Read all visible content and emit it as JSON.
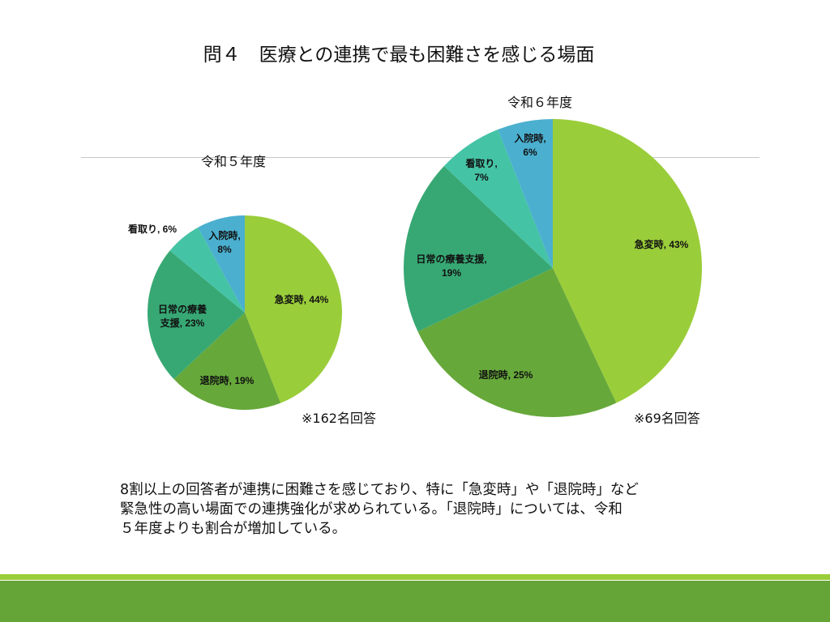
{
  "title": "問４　医療との連携で最も困難さを感じる場面",
  "colors": [
    "#9acd3a",
    "#66a83a",
    "#37a874",
    "#45c3a5",
    "#4bafcf"
  ],
  "chart_data": [
    {
      "type": "pie",
      "title": "令和５年度",
      "note": "※162名回答",
      "categories": [
        "急変時",
        "退院時",
        "日常の療養支援",
        "看取り",
        "入院時"
      ],
      "values": [
        44,
        19,
        23,
        6,
        8
      ],
      "labels": [
        "急変時, 44%",
        "退院時, 19%",
        "日常の療養",
        "支援, 23%",
        "看取り, 6%",
        "入院時,",
        "8%"
      ]
    },
    {
      "type": "pie",
      "title": "令和６年度",
      "note": "※69名回答",
      "categories": [
        "急変時",
        "退院時",
        "日常の療養支援",
        "看取り",
        "入院時"
      ],
      "values": [
        43,
        25,
        19,
        7,
        6
      ],
      "labels": [
        "急変時, 43%",
        "退院時, 25%",
        "日常の療養支援,",
        "19%",
        "看取り,",
        "7%",
        "入院時,",
        "6%"
      ]
    }
  ],
  "summary": [
    "8割以上の回答者が連携に困難さを感じており、特に「急変時」や「退院時」など",
    "緊急性の高い場面での連携強化が求められている。「退院時」については、令和",
    "５年度よりも割合が増加している。"
  ]
}
